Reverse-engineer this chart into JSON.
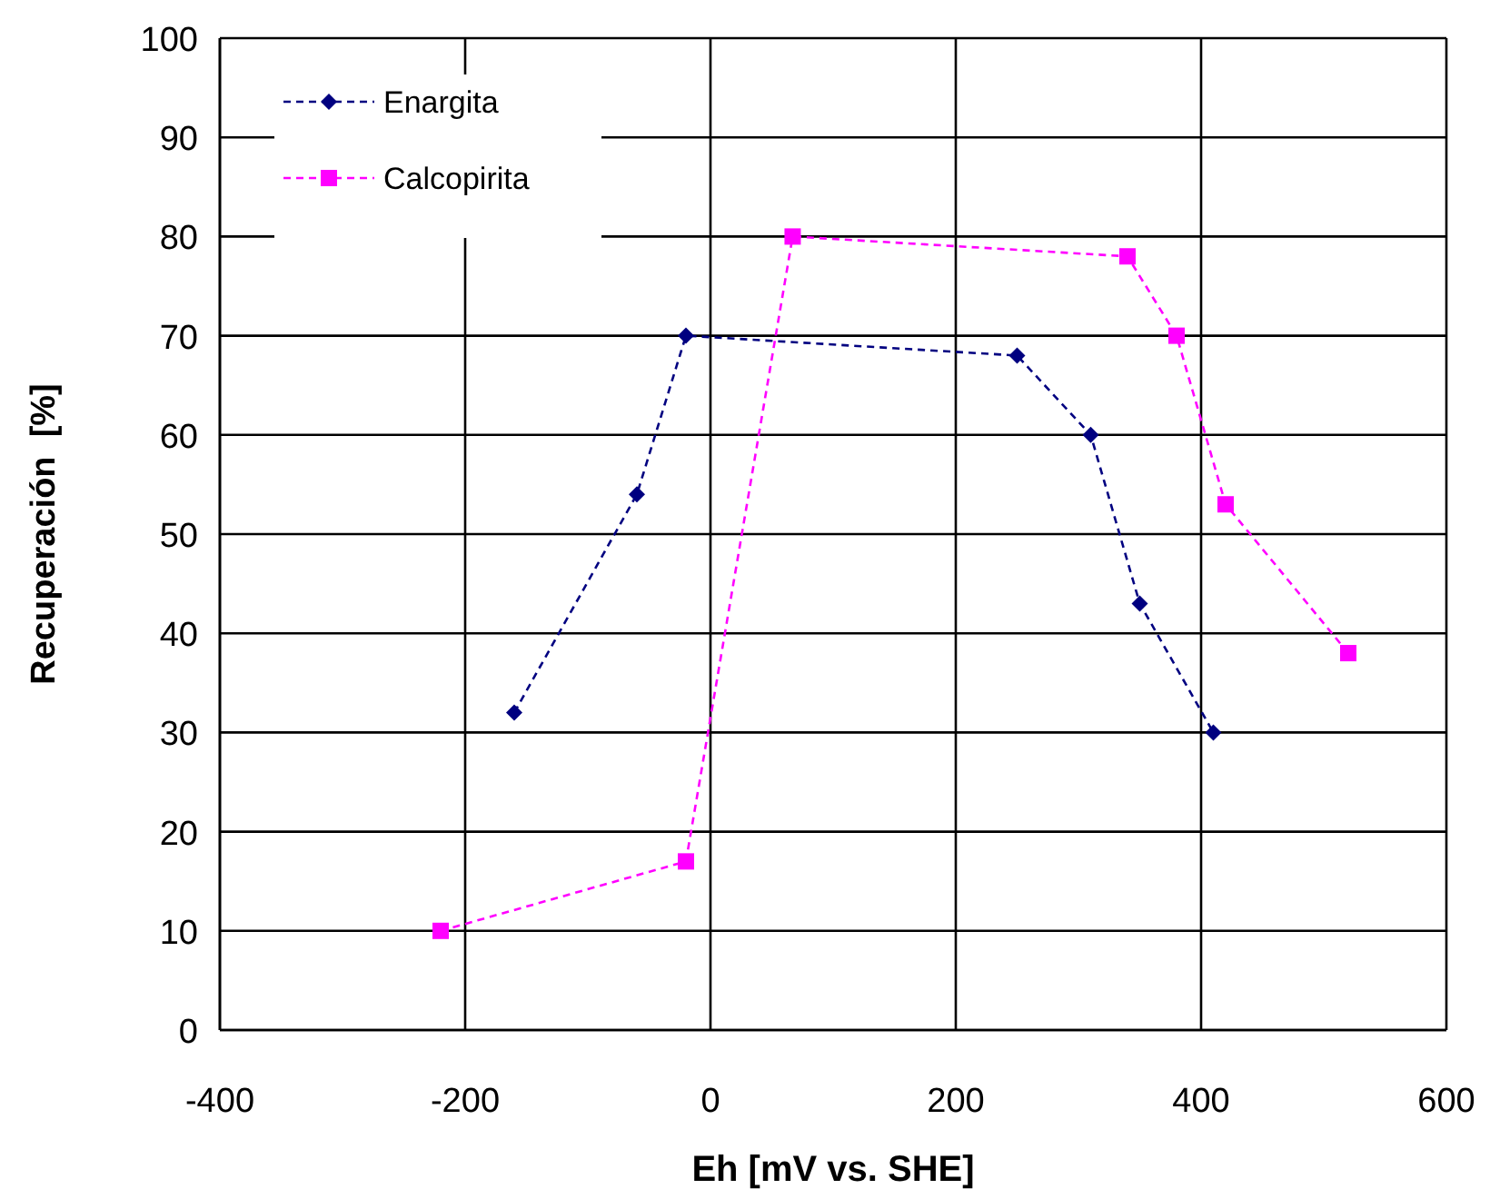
{
  "chart_data": {
    "type": "line",
    "xlabel": "Eh [mV vs. SHE]",
    "ylabel": "Recuperación  [%]",
    "xlim": [
      -400,
      600
    ],
    "xticks": [
      -400,
      -200,
      0,
      200,
      400,
      600
    ],
    "ylim": [
      0,
      100
    ],
    "yticks": [
      0,
      10,
      20,
      30,
      40,
      50,
      60,
      70,
      80,
      90,
      100
    ],
    "grid": true,
    "legend": "top left",
    "line_style": "dashed",
    "series": [
      {
        "name": "Enargita",
        "color": "#000080",
        "marker": "diamond",
        "x": [
          -160,
          -60,
          -20,
          250,
          310,
          350,
          410
        ],
        "values": [
          32,
          54,
          70,
          68,
          60,
          43,
          30
        ]
      },
      {
        "name": "Calcopirita",
        "color": "#ff00ff",
        "marker": "square",
        "x": [
          -220,
          -20,
          67,
          340,
          380,
          420,
          520
        ],
        "values": [
          10,
          17,
          80,
          78,
          70,
          53,
          38
        ]
      }
    ]
  }
}
